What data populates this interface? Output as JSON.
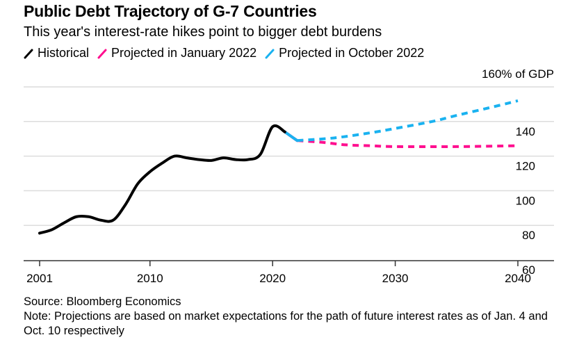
{
  "chart_data": {
    "type": "line",
    "title": "Public Debt Trajectory of G-7 Countries",
    "subtitle": "This year's interest-rate hikes point to bigger debt burdens",
    "xlabel": "",
    "ylabel": "% of GDP",
    "y_unit_label": "160% of GDP",
    "xlim": [
      2001,
      2040
    ],
    "ylim": [
      60,
      160
    ],
    "x_ticks": [
      2001,
      2010,
      2020,
      2030,
      2040
    ],
    "x_tick_labels": [
      "2001",
      "2010",
      "2020",
      "2030",
      "2040"
    ],
    "y_ticks": [
      60,
      80,
      100,
      120,
      140,
      160
    ],
    "y_tick_labels": [
      "60",
      "80",
      "100",
      "120",
      "140",
      "160% of GDP"
    ],
    "grid": true,
    "legend_position": "top-left",
    "series": [
      {
        "name": "Historical",
        "color": "#000000",
        "style": "solid",
        "x": [
          2001,
          2002,
          2003,
          2004,
          2005,
          2006,
          2007,
          2008,
          2009,
          2010,
          2011,
          2012,
          2013,
          2014,
          2015,
          2016,
          2017,
          2018,
          2019,
          2020,
          2021
        ],
        "values": [
          75.5,
          77.5,
          81.5,
          85,
          85,
          83,
          83,
          92,
          104,
          111,
          116,
          120,
          119,
          118,
          117.5,
          119,
          118,
          118,
          121,
          137,
          134
        ]
      },
      {
        "name": "Projected in January 2022",
        "color": "#ff0f8f",
        "style": "dashed",
        "x": [
          2021,
          2022,
          2024,
          2026,
          2028,
          2030,
          2035,
          2040
        ],
        "values": [
          134,
          129,
          128,
          126.5,
          126,
          125.5,
          125.5,
          126
        ]
      },
      {
        "name": "Projected in October 2022",
        "color": "#1ab2f0",
        "style": "dashed",
        "x": [
          2021,
          2022,
          2025,
          2028,
          2030,
          2033,
          2035,
          2038,
          2040
        ],
        "values": [
          134,
          129,
          130.5,
          133.5,
          136,
          140,
          143.5,
          148.5,
          152
        ]
      }
    ]
  },
  "legend": [
    {
      "label": "Historical",
      "color": "#000000"
    },
    {
      "label": "Projected in January 2022",
      "color": "#ff0f8f"
    },
    {
      "label": "Projected in October 2022",
      "color": "#1ab2f0"
    }
  ],
  "footer": {
    "source": "Source: Bloomberg Economics",
    "note": "Note: Projections are based on market expectations for the path of future interest rates as of Jan. 4 and Oct. 10 respectively"
  }
}
